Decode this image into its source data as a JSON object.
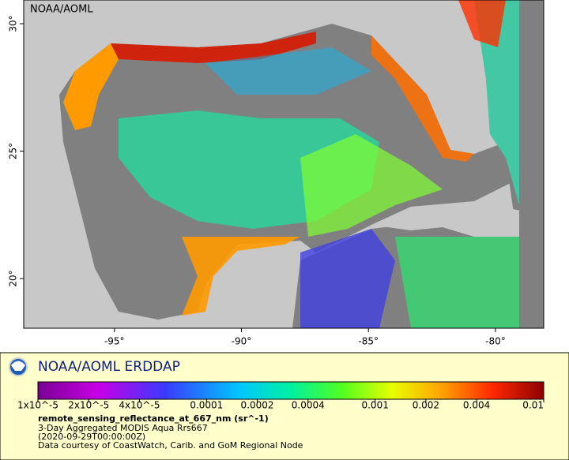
{
  "map": {
    "label": "NOAA/AOML",
    "lon_lim": [
      -98.57,
      -78.1
    ],
    "lat_lim": [
      18.05,
      30.93
    ],
    "lon_ticks": [
      {
        "value": -95,
        "label": "-95°"
      },
      {
        "value": -90,
        "label": "-90°"
      },
      {
        "value": -85,
        "label": "-85°"
      },
      {
        "value": -80,
        "label": "-80°"
      }
    ],
    "lat_ticks": [
      {
        "value": 20,
        "label": "20°"
      },
      {
        "value": 25,
        "label": "25°"
      },
      {
        "value": 30,
        "label": "30°"
      }
    ]
  },
  "legend": {
    "title": "NOAA/AOML ERDDAP",
    "colorbar": {
      "scale": "log",
      "lim": [
        1e-05,
        0.01
      ],
      "ticks": [
        {
          "value": 1e-05,
          "label": "1x10^-5"
        },
        {
          "value": 2e-05,
          "label": "2x10^-5"
        },
        {
          "value": 4e-05,
          "label": "4x10^-5"
        },
        0.0001,
        0.0002,
        0.0004,
        0.001,
        0.002,
        0.004,
        0.01
      ]
    },
    "variable": "remote_sensing_reflectance_at_667_nm (sr^-1)",
    "lines": [
      "3-Day Aggregated MODIS Aqua Rrs667",
      "(2020-09-29T00:00:00Z)",
      "Data courtesy of CoastWatch, Carib. and GoM Regional Node"
    ]
  }
}
